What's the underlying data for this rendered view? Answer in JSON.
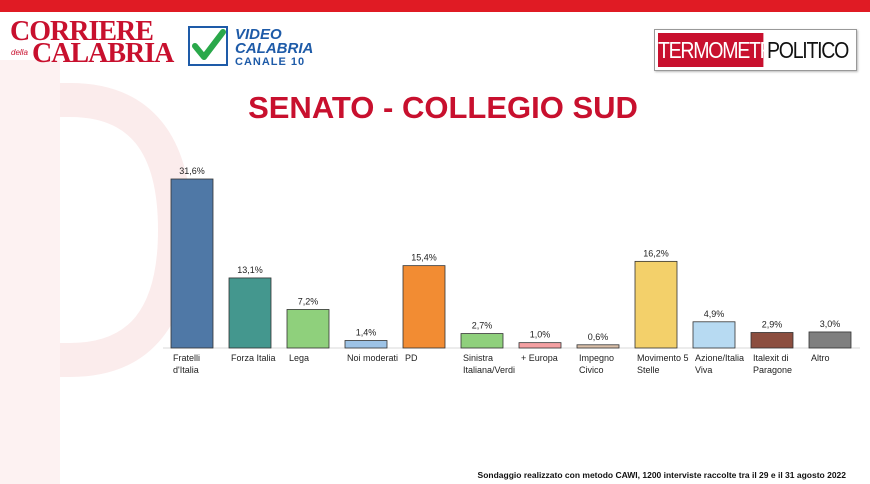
{
  "logos": {
    "corriere": {
      "line1": "CORRIERE",
      "line2": "CALABRIA",
      "small": "della"
    },
    "video_calabria": {
      "line1": "VIDEO",
      "line2": "CALABRIA",
      "line3": "CANALE 10",
      "icon": "check-icon"
    },
    "termometro": {
      "part1": "TERMOMETRO",
      "part2": "POLITICO"
    }
  },
  "colors": {
    "accent": "#c8102e",
    "video_blue": "#1e5ba8",
    "check_green": "#2aa84a"
  },
  "footnote": "Sondaggio realizzato con metodo CAWI, 1200 interviste raccolte tra il 29 e il 31 agosto 2022",
  "chart_data": {
    "type": "bar",
    "title": "SENATO - COLLEGIO SUD",
    "xlabel": "",
    "ylabel": "",
    "ylim": [
      0,
      31.6
    ],
    "grid": false,
    "legend": "none",
    "categories": [
      [
        "Fratelli",
        "d'Italia"
      ],
      [
        "Forza Italia"
      ],
      [
        "Lega"
      ],
      [
        "Noi moderati"
      ],
      [
        "PD"
      ],
      [
        "Sinistra",
        "Italiana/Verdi"
      ],
      [
        "+ Europa"
      ],
      [
        "Impegno",
        "Civico"
      ],
      [
        "Movimento 5",
        "Stelle"
      ],
      [
        "Azione/Italia",
        "Viva"
      ],
      [
        "Italexit di",
        "Paragone"
      ],
      [
        "Altro"
      ]
    ],
    "values": [
      31.6,
      13.1,
      7.2,
      1.4,
      15.4,
      2.7,
      1.0,
      0.6,
      16.2,
      4.9,
      2.9,
      3.0
    ],
    "value_labels": [
      "31,6%",
      "13,1%",
      "7,2%",
      "1,4%",
      "15,4%",
      "2,7%",
      "1,0%",
      "0,6%",
      "16,2%",
      "4,9%",
      "2,9%",
      "3,0%"
    ],
    "colors": [
      "#4f78a6",
      "#44978e",
      "#8fd07c",
      "#9dc3e6",
      "#f28c33",
      "#8fd07c",
      "#f4a0a2",
      "#d9bfa8",
      "#f3d06a",
      "#b7daf2",
      "#8c4e3f",
      "#7f7f7f"
    ]
  }
}
